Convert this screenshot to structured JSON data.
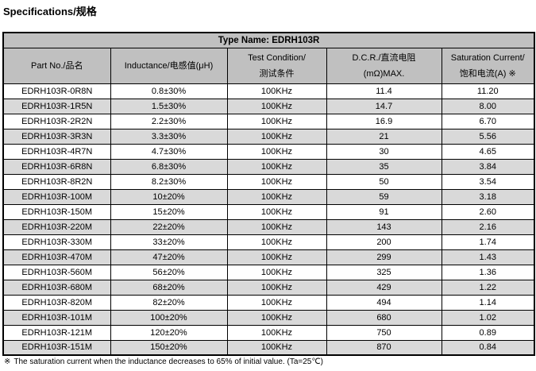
{
  "page": {
    "title": "Specifications/规格"
  },
  "table": {
    "type_name": "Type Name: EDRH103R",
    "columns": [
      {
        "line1": "Part No./品名",
        "line2": ""
      },
      {
        "line1": "Inductance/电感值(μH)",
        "line2": ""
      },
      {
        "line1": "Test Condition/",
        "line2": "测试条件"
      },
      {
        "line1": "D.C.R./直流电阻",
        "line2": "(mΩ)MAX."
      },
      {
        "line1": "Saturation Current/",
        "line2": "饱和电流(A) ※"
      }
    ],
    "rows": [
      [
        "EDRH103R-0R8N",
        "0.8±30%",
        "100KHz",
        "11.4",
        "11.20"
      ],
      [
        "EDRH103R-1R5N",
        "1.5±30%",
        "100KHz",
        "14.7",
        "8.00"
      ],
      [
        "EDRH103R-2R2N",
        "2.2±30%",
        "100KHz",
        "16.9",
        "6.70"
      ],
      [
        "EDRH103R-3R3N",
        "3.3±30%",
        "100KHz",
        "21",
        "5.56"
      ],
      [
        "EDRH103R-4R7N",
        "4.7±30%",
        "100KHz",
        "30",
        "4.65"
      ],
      [
        "EDRH103R-6R8N",
        "6.8±30%",
        "100KHz",
        "35",
        "3.84"
      ],
      [
        "EDRH103R-8R2N",
        "8.2±30%",
        "100KHz",
        "50",
        "3.54"
      ],
      [
        "EDRH103R-100M",
        "10±20%",
        "100KHz",
        "59",
        "3.18"
      ],
      [
        "EDRH103R-150M",
        "15±20%",
        "100KHz",
        "91",
        "2.60"
      ],
      [
        "EDRH103R-220M",
        "22±20%",
        "100KHz",
        "143",
        "2.16"
      ],
      [
        "EDRH103R-330M",
        "33±20%",
        "100KHz",
        "200",
        "1.74"
      ],
      [
        "EDRH103R-470M",
        "47±20%",
        "100KHz",
        "299",
        "1.43"
      ],
      [
        "EDRH103R-560M",
        "56±20%",
        "100KHz",
        "325",
        "1.36"
      ],
      [
        "EDRH103R-680M",
        "68±20%",
        "100KHz",
        "429",
        "1.22"
      ],
      [
        "EDRH103R-820M",
        "82±20%",
        "100KHz",
        "494",
        "1.14"
      ],
      [
        "EDRH103R-101M",
        "100±20%",
        "100KHz",
        "680",
        "1.02"
      ],
      [
        "EDRH103R-121M",
        "120±20%",
        "100KHz",
        "750",
        "0.89"
      ],
      [
        "EDRH103R-151M",
        "150±20%",
        "100KHz",
        "870",
        "0.84"
      ]
    ],
    "cell_names": [
      "part-no-cell",
      "inductance-cell",
      "test-condition-cell",
      "dcr-cell",
      "saturation-current-cell"
    ]
  },
  "footnote": {
    "symbol": "※",
    "text": "The saturation current when the inductance decreases to 65% of initial value. (Ta=25℃)"
  },
  "colors": {
    "header_bg": "#c0c0c0",
    "alt_row_bg": "#d9d9d9",
    "border": "#000000",
    "text": "#000000"
  }
}
